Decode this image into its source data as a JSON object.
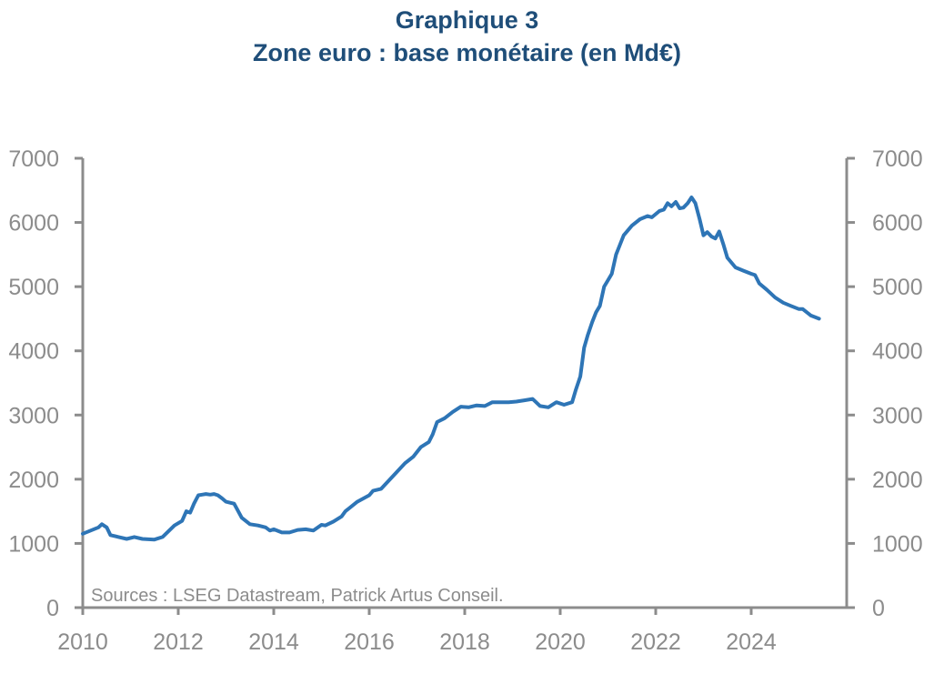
{
  "title_line1": "Graphique 3",
  "title_line2": "Zone euro : base monétaire (en Md€)",
  "chart_data": {
    "type": "line",
    "title": "Graphique 3 — Zone euro : base monétaire (en Md€)",
    "xlabel": "",
    "ylabel": "",
    "xlim": [
      2010,
      2026
    ],
    "ylim": [
      0,
      7000
    ],
    "x_ticks": [
      "2010",
      "2012",
      "2014",
      "2016",
      "2018",
      "2020",
      "2022",
      "2024"
    ],
    "y_ticks": [
      "0",
      "1000",
      "2000",
      "3000",
      "4000",
      "5000",
      "6000",
      "7000"
    ],
    "grid": false,
    "series_color": "#2e75b6",
    "annotation": "Sources : LSEG Datastream, Patrick Artus Conseil.",
    "series": [
      {
        "name": "",
        "x": [
          2010.0,
          2010.33,
          2010.4,
          2010.5,
          2010.58,
          2010.75,
          2010.92,
          2011.08,
          2011.25,
          2011.5,
          2011.67,
          2011.92,
          2012.08,
          2012.17,
          2012.25,
          2012.33,
          2012.42,
          2012.5,
          2012.58,
          2012.67,
          2012.75,
          2012.83,
          2012.92,
          2013.0,
          2013.17,
          2013.33,
          2013.5,
          2013.67,
          2013.83,
          2013.92,
          2014.0,
          2014.17,
          2014.33,
          2014.5,
          2014.67,
          2014.83,
          2015.0,
          2015.08,
          2015.25,
          2015.42,
          2015.5,
          2015.75,
          2016.0,
          2016.08,
          2016.25,
          2016.5,
          2016.75,
          2016.92,
          2017.08,
          2017.25,
          2017.33,
          2017.42,
          2017.58,
          2017.75,
          2017.92,
          2018.08,
          2018.25,
          2018.42,
          2018.58,
          2018.75,
          2018.92,
          2019.08,
          2019.25,
          2019.42,
          2019.58,
          2019.75,
          2019.92,
          2020.08,
          2020.25,
          2020.33,
          2020.42,
          2020.5,
          2020.58,
          2020.67,
          2020.75,
          2020.83,
          2020.92,
          2021.0,
          2021.08,
          2021.17,
          2021.25,
          2021.33,
          2021.5,
          2021.67,
          2021.83,
          2021.92,
          2022.08,
          2022.17,
          2022.25,
          2022.33,
          2022.42,
          2022.5,
          2022.58,
          2022.67,
          2022.75,
          2022.83,
          2022.92,
          2023.0,
          2023.08,
          2023.17,
          2023.25,
          2023.33,
          2023.42,
          2023.5,
          2023.67,
          2023.83,
          2024.0,
          2024.08,
          2024.17,
          2024.33,
          2024.5,
          2024.67,
          2024.83,
          2025.0,
          2025.08,
          2025.25,
          2025.42
        ],
        "y": [
          1150,
          1250,
          1300,
          1250,
          1130,
          1100,
          1070,
          1100,
          1070,
          1060,
          1100,
          1280,
          1350,
          1500,
          1480,
          1620,
          1750,
          1760,
          1770,
          1760,
          1770,
          1750,
          1700,
          1650,
          1620,
          1400,
          1300,
          1280,
          1250,
          1200,
          1220,
          1170,
          1170,
          1210,
          1220,
          1200,
          1290,
          1280,
          1340,
          1420,
          1500,
          1650,
          1750,
          1820,
          1850,
          2050,
          2250,
          2350,
          2500,
          2580,
          2700,
          2890,
          2950,
          3050,
          3130,
          3120,
          3150,
          3140,
          3200,
          3200,
          3200,
          3210,
          3230,
          3250,
          3140,
          3120,
          3200,
          3160,
          3200,
          3400,
          3600,
          4050,
          4250,
          4450,
          4600,
          4700,
          5000,
          5100,
          5200,
          5500,
          5650,
          5800,
          5950,
          6050,
          6100,
          6080,
          6180,
          6200,
          6300,
          6250,
          6320,
          6220,
          6230,
          6300,
          6390,
          6300,
          6050,
          5800,
          5850,
          5780,
          5750,
          5860,
          5650,
          5450,
          5300,
          5250,
          5200,
          5180,
          5050,
          4950,
          4830,
          4750,
          4700,
          4650,
          4650,
          4550,
          4500
        ]
      }
    ]
  }
}
